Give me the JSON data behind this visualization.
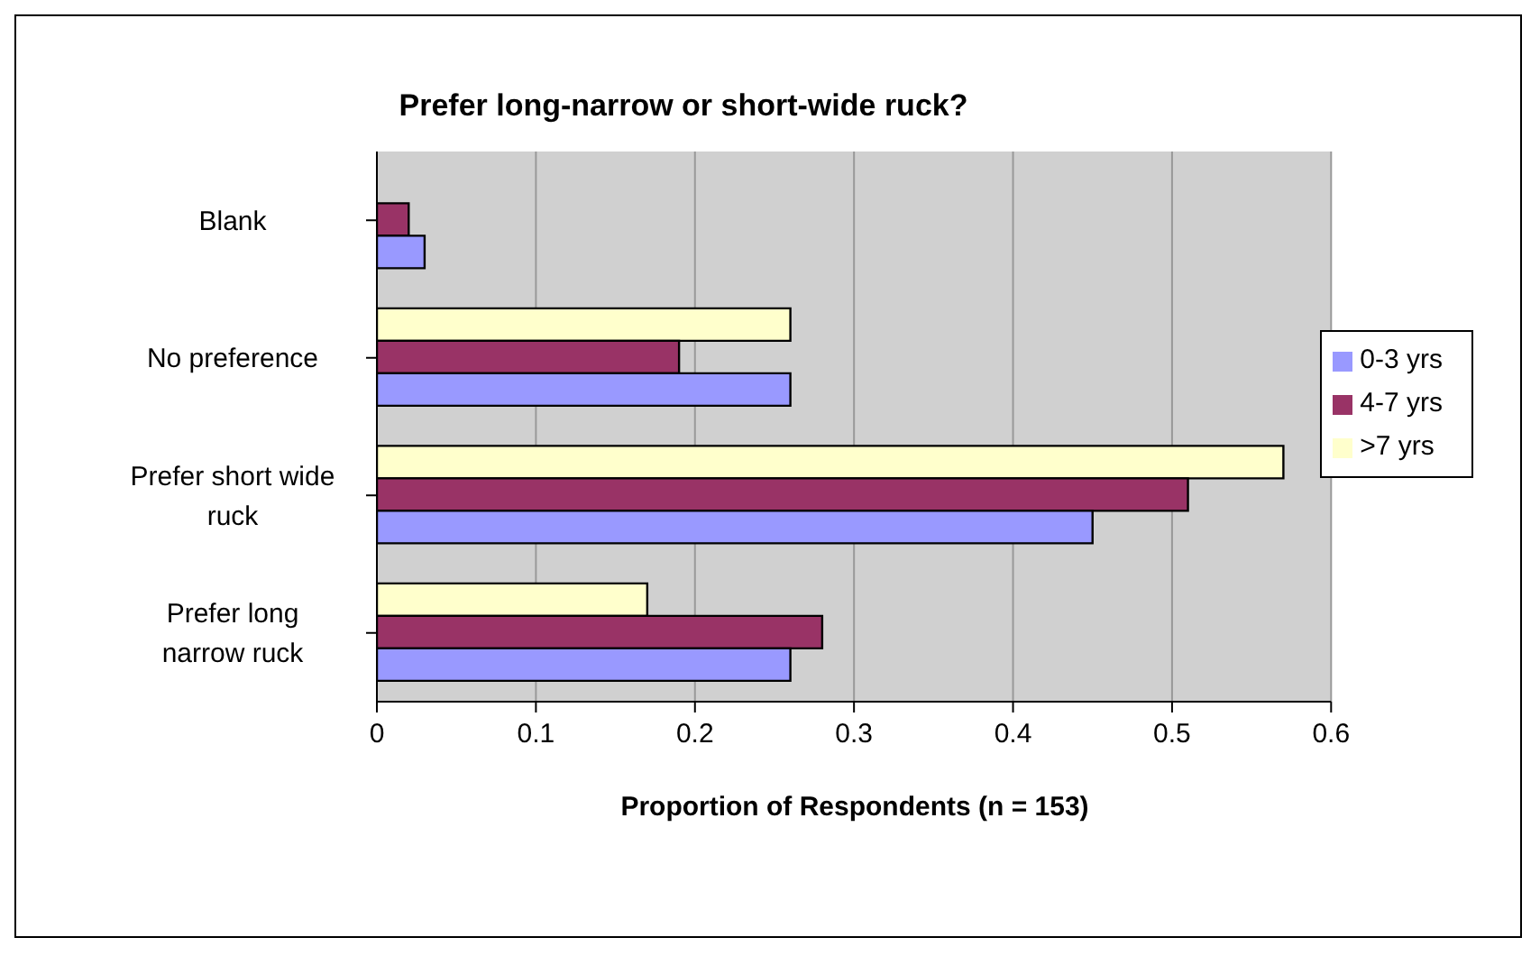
{
  "chart_data": {
    "type": "bar",
    "orientation": "horizontal",
    "title": "Prefer long-narrow or short-wide ruck?",
    "xlabel": "Proportion of Respondents (n = 153)",
    "categories": [
      "Blank",
      "No preference",
      "Prefer short wide ruck",
      "Prefer long narrow ruck"
    ],
    "series": [
      {
        "name": ">7 yrs",
        "color": "#ffffcc",
        "values": [
          null,
          0.26,
          0.57,
          0.17
        ]
      },
      {
        "name": "4-7 yrs",
        "color": "#993366",
        "values": [
          0.02,
          0.19,
          0.51,
          0.28
        ]
      },
      {
        "name": "0-3 yrs",
        "color": "#9999ff",
        "values": [
          0.03,
          0.26,
          0.45,
          0.26
        ]
      }
    ],
    "xlim": [
      0,
      0.6
    ],
    "xticks": [
      0,
      0.1,
      0.2,
      0.3,
      0.4,
      0.5,
      0.6
    ],
    "grid": "x",
    "legend": "right"
  }
}
